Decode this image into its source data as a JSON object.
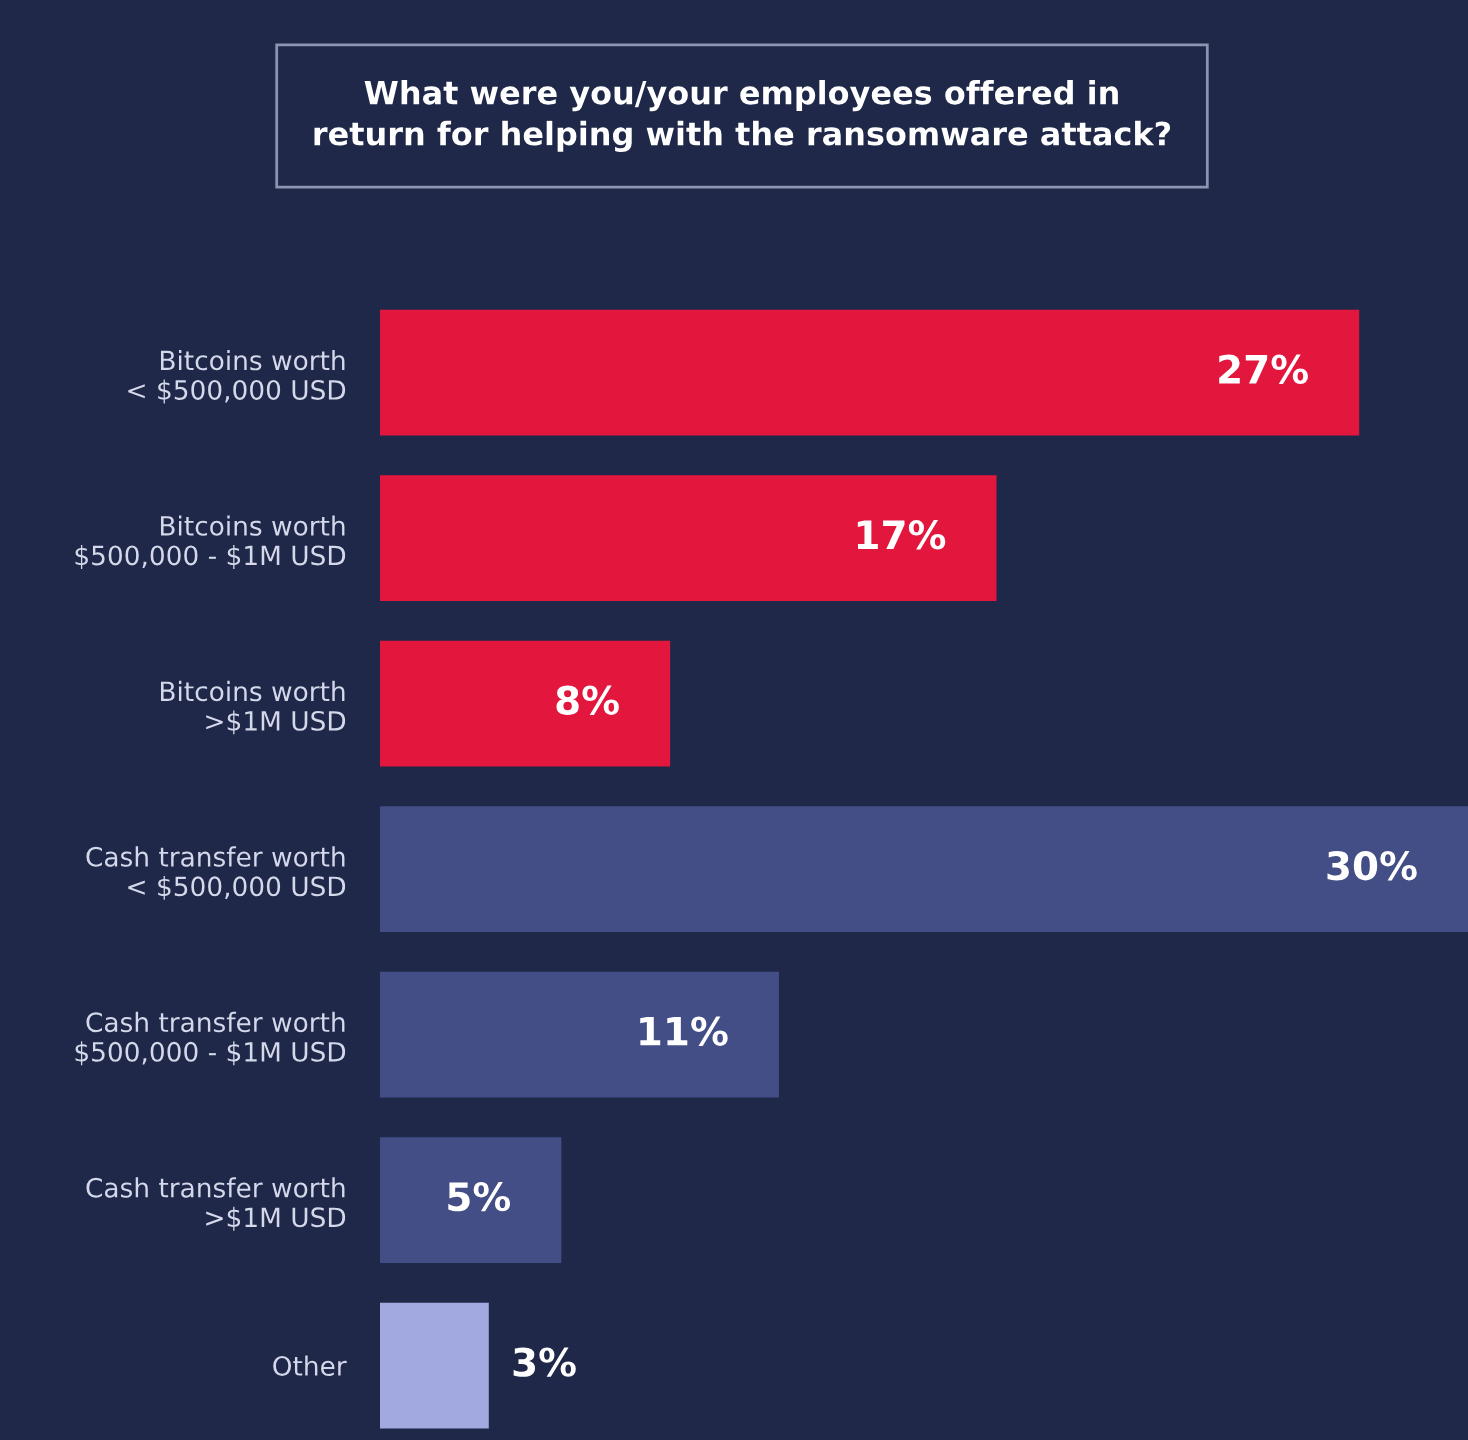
{
  "chart_data": {
    "type": "bar",
    "orientation": "horizontal",
    "title": "What were you/your employees offered in\nreturn for helping with the ransomware attack?",
    "categories": [
      "Bitcoins worth\n< $500,000 USD",
      "Bitcoins worth\n$500,000 - $1M USD",
      "Bitcoins worth\n>$1M USD",
      "Cash transfer worth\n< $500,000 USD",
      "Cash transfer worth\n$500,000 - $1M USD",
      "Cash transfer worth\n>$1M USD",
      "Other"
    ],
    "values": [
      27,
      17,
      8,
      30,
      11,
      5,
      3
    ],
    "colors": [
      "#e3173e",
      "#e3173e",
      "#e3173e",
      "#424e85",
      "#424e85",
      "#424e85",
      "#a2a8e0"
    ],
    "value_labels": [
      "27%",
      "17%",
      "8%",
      "30%",
      "11%",
      "5%",
      "3%"
    ],
    "grid": false,
    "legend": false
  }
}
